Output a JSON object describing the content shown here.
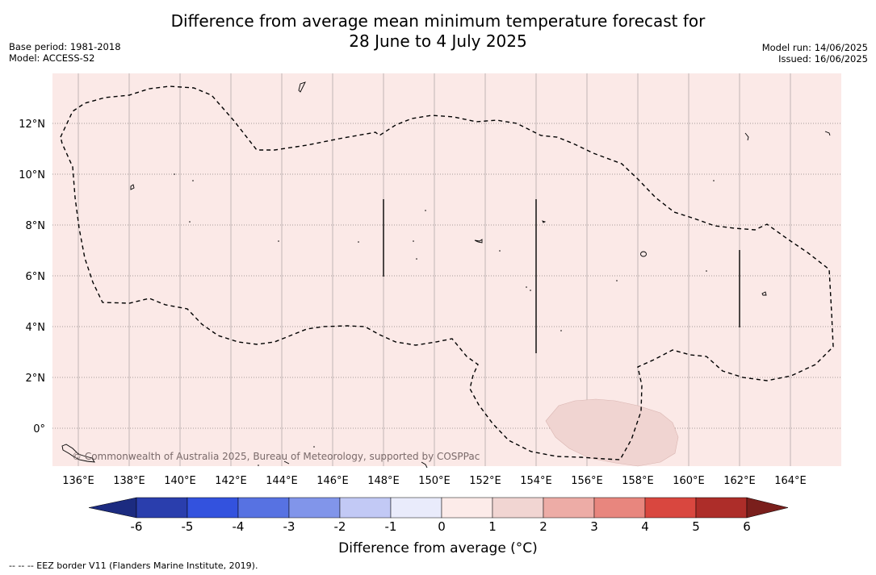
{
  "title": {
    "line1": "Difference from average mean minimum temperature forecast for",
    "line2": "28 June to 4 July 2025"
  },
  "meta": {
    "base_period": "Base period: 1981-2018",
    "model": "Model: ACCESS-S2",
    "model_run": "Model run: 14/06/2025",
    "issued": "Issued: 16/06/2025"
  },
  "map": {
    "longitude_labels": [
      "136°E",
      "138°E",
      "140°E",
      "142°E",
      "144°E",
      "146°E",
      "148°E",
      "150°E",
      "152°E",
      "154°E",
      "156°E",
      "158°E",
      "160°E",
      "162°E",
      "164°E"
    ],
    "latitude_labels": [
      "12°N",
      "10°N",
      "8°N",
      "6°N",
      "4°N",
      "2°N",
      "0°"
    ],
    "credit": "© Commonwealth of Australia 2025, Bureau of Meteorology, supported by COSPPac",
    "background_color": "#fbe9e7",
    "anomaly_patch_color": "#f0d4d1"
  },
  "colorbar": {
    "tick_labels": [
      "-6",
      "-5",
      "-4",
      "-3",
      "-2",
      "-1",
      "0",
      "1",
      "2",
      "3",
      "4",
      "5",
      "6"
    ],
    "colors": [
      "#2a3ead",
      "#3352de",
      "#5772e2",
      "#8195ea",
      "#c2c9f5",
      "#e9ebfb",
      "#fcebe9",
      "#f1d5d2",
      "#edaca6",
      "#e8867e",
      "#d9473f",
      "#ad2d29"
    ],
    "under_color": "#1c2b80",
    "over_color": "#7a1f1c",
    "label": "Difference from average (°C)"
  },
  "footnote": "--  --  -- EEZ border V11 (Flanders Marine Institute, 2019)."
}
